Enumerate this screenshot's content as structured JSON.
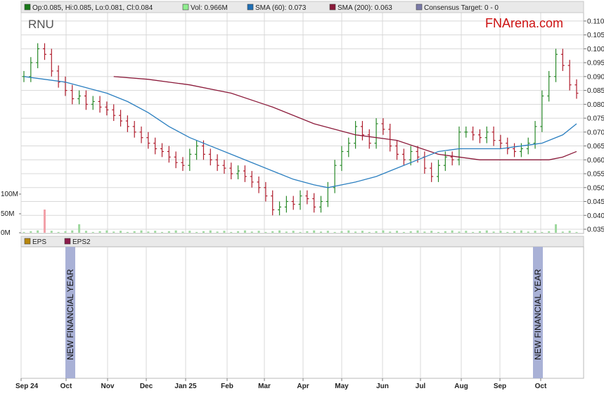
{
  "legend_top": [
    {
      "label": "Op:0.085, Hi:0.085, Lo:0.081, Cl:0.084",
      "color": "#1a7a1a"
    },
    {
      "label": "Vol: 0.966M",
      "color": "#90ee90"
    },
    {
      "label": "SMA (60): 0.073",
      "color": "#1f6fb5"
    },
    {
      "label": "SMA (200): 0.063",
      "color": "#8b1a3a"
    },
    {
      "label": "Consensus Target: 0 - 0",
      "color": "#7a7aa8"
    }
  ],
  "legend_bottom": [
    {
      "label": "EPS",
      "color": "#b8860b"
    },
    {
      "label": "EPS2",
      "color": "#8b1a4a"
    }
  ],
  "ticker": "RNU",
  "brand": "FNArena.com",
  "annotations": [
    {
      "label": "NEW FINANCIAL YEAR",
      "month_index": 1
    },
    {
      "label": "NEW FINANCIAL YEAR",
      "month_index": 13
    }
  ],
  "colors": {
    "up": "#2a8a2a",
    "down": "#b01e2e",
    "sma60": "#2b7fc0",
    "sma200": "#8b1a3a",
    "volume": "#9ed89e",
    "grid": "#d8d8d8",
    "band": "#a9b1d6"
  },
  "chart_data": [
    {
      "type": "line",
      "title": "",
      "ticker": "RNU",
      "y_ticks": [
        "0.110",
        "0.105",
        "0.100",
        "0.095",
        "0.090",
        "0.085",
        "0.080",
        "0.075",
        "0.070",
        "0.065",
        "0.060",
        "0.055",
        "0.050",
        "0.045",
        "0.040",
        "0.035"
      ],
      "ylim": [
        0.035,
        0.112
      ],
      "x_ticks": [
        "Sep 24",
        "Oct",
        "Nov",
        "Dec",
        "Jan 25",
        "Feb",
        "Mar",
        "Apr",
        "May",
        "Jun",
        "Jul",
        "Aug",
        "Sep",
        "Oct"
      ],
      "grid": true,
      "close_series": [
        [
          0,
          0.09
        ],
        [
          1,
          0.095
        ],
        [
          2,
          0.1
        ],
        [
          3,
          0.098
        ],
        [
          4,
          0.092
        ],
        [
          5,
          0.088
        ],
        [
          6,
          0.085
        ],
        [
          7,
          0.082
        ],
        [
          8,
          0.083
        ],
        [
          9,
          0.08
        ],
        [
          10,
          0.081
        ],
        [
          11,
          0.079
        ],
        [
          12,
          0.078
        ],
        [
          13,
          0.076
        ],
        [
          14,
          0.074
        ],
        [
          15,
          0.072
        ],
        [
          16,
          0.07
        ],
        [
          17,
          0.068
        ],
        [
          18,
          0.066
        ],
        [
          19,
          0.064
        ],
        [
          20,
          0.063
        ],
        [
          21,
          0.061
        ],
        [
          22,
          0.059
        ],
        [
          23,
          0.058
        ],
        [
          24,
          0.062
        ],
        [
          25,
          0.065
        ],
        [
          26,
          0.062
        ],
        [
          27,
          0.06
        ],
        [
          28,
          0.058
        ],
        [
          29,
          0.057
        ],
        [
          30,
          0.055
        ],
        [
          31,
          0.056
        ],
        [
          32,
          0.054
        ],
        [
          33,
          0.052
        ],
        [
          34,
          0.05
        ],
        [
          35,
          0.047
        ],
        [
          36,
          0.042
        ],
        [
          37,
          0.043
        ],
        [
          38,
          0.045
        ],
        [
          39,
          0.044
        ],
        [
          40,
          0.047
        ],
        [
          41,
          0.046
        ],
        [
          42,
          0.043
        ],
        [
          43,
          0.045
        ],
        [
          44,
          0.05
        ],
        [
          45,
          0.058
        ],
        [
          46,
          0.063
        ],
        [
          47,
          0.066
        ],
        [
          48,
          0.072
        ],
        [
          49,
          0.069
        ],
        [
          50,
          0.066
        ],
        [
          51,
          0.073
        ],
        [
          52,
          0.071
        ],
        [
          53,
          0.065
        ],
        [
          54,
          0.062
        ],
        [
          55,
          0.06
        ],
        [
          56,
          0.063
        ],
        [
          57,
          0.061
        ],
        [
          58,
          0.057
        ],
        [
          59,
          0.054
        ],
        [
          60,
          0.058
        ],
        [
          61,
          0.061
        ],
        [
          62,
          0.06
        ],
        [
          63,
          0.07
        ],
        [
          64,
          0.07
        ],
        [
          65,
          0.069
        ],
        [
          66,
          0.068
        ],
        [
          67,
          0.07
        ],
        [
          68,
          0.067
        ],
        [
          69,
          0.066
        ],
        [
          70,
          0.064
        ],
        [
          71,
          0.063
        ],
        [
          72,
          0.064
        ],
        [
          73,
          0.066
        ],
        [
          74,
          0.072
        ],
        [
          75,
          0.083
        ],
        [
          76,
          0.09
        ],
        [
          77,
          0.098
        ],
        [
          78,
          0.094
        ],
        [
          79,
          0.087
        ],
        [
          80,
          0.084
        ]
      ],
      "series": [
        {
          "name": "SMA (60)",
          "values": [
            [
              0,
              0.09
            ],
            [
              3,
              0.089
            ],
            [
              6,
              0.088
            ],
            [
              9,
              0.086
            ],
            [
              12,
              0.084
            ],
            [
              15,
              0.081
            ],
            [
              18,
              0.077
            ],
            [
              21,
              0.072
            ],
            [
              24,
              0.068
            ],
            [
              27,
              0.065
            ],
            [
              30,
              0.062
            ],
            [
              33,
              0.059
            ],
            [
              36,
              0.056
            ],
            [
              39,
              0.053
            ],
            [
              42,
              0.051
            ],
            [
              44,
              0.05
            ],
            [
              46,
              0.051
            ],
            [
              48,
              0.052
            ],
            [
              51,
              0.054
            ],
            [
              54,
              0.057
            ],
            [
              57,
              0.06
            ],
            [
              60,
              0.063
            ],
            [
              63,
              0.064
            ],
            [
              66,
              0.064
            ],
            [
              69,
              0.064
            ],
            [
              72,
              0.065
            ],
            [
              75,
              0.066
            ],
            [
              78,
              0.069
            ],
            [
              80,
              0.073
            ]
          ]
        },
        {
          "name": "SMA (200)",
          "values": [
            [
              13,
              0.09
            ],
            [
              18,
              0.089
            ],
            [
              24,
              0.087
            ],
            [
              30,
              0.084
            ],
            [
              36,
              0.079
            ],
            [
              42,
              0.073
            ],
            [
              48,
              0.069
            ],
            [
              54,
              0.067
            ],
            [
              60,
              0.062
            ],
            [
              66,
              0.06
            ],
            [
              72,
              0.06
            ],
            [
              76,
              0.06
            ],
            [
              78,
              0.061
            ],
            [
              80,
              0.063
            ]
          ]
        }
      ]
    },
    {
      "type": "bar",
      "title": "Volume",
      "y_ticks": [
        "100M",
        "50M",
        "0M"
      ],
      "ylim": [
        0,
        100
      ],
      "notable_volume_spikes": [
        [
          3,
          60
        ],
        [
          8,
          22
        ],
        [
          77,
          22
        ]
      ]
    },
    {
      "type": "bar",
      "title": "",
      "series": [
        {
          "name": "EPS",
          "values": []
        },
        {
          "name": "EPS2",
          "values": []
        }
      ]
    }
  ]
}
